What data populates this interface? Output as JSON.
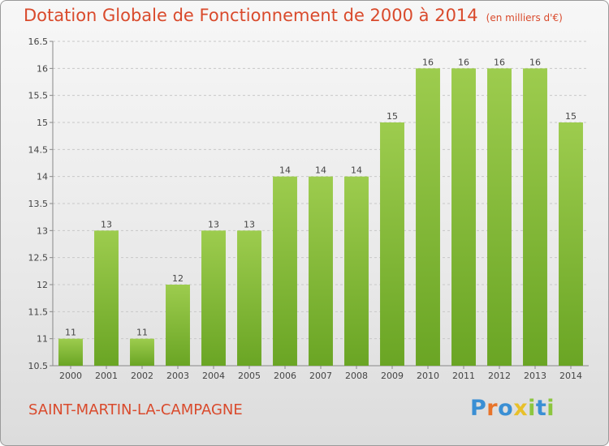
{
  "header": {
    "title": "Dotation Globale de Fonctionnement de 2000 à 2014",
    "unit": "(en milliers d'€)"
  },
  "footer": {
    "commune": "SAINT-MARTIN-LA-CAMPAGNE",
    "brand": "Proxiti"
  },
  "colors": {
    "title": "#d94a2c",
    "bar_light": "#9dcc4e",
    "bar_dark": "#6aa524",
    "grid": "#c8c8c8",
    "brand_letters": [
      "#3a8fd4",
      "#e8742a",
      "#3a8fd4",
      "#e8c02a",
      "#8cc63f",
      "#3a8fd4",
      "#8cc63f"
    ]
  },
  "chart_data": {
    "type": "bar",
    "title": "Dotation Globale de Fonctionnement de 2000 à 2014",
    "subtitle": "(en milliers d'€)",
    "xlabel": "",
    "ylabel": "",
    "categories": [
      "2000",
      "2001",
      "2002",
      "2003",
      "2004",
      "2005",
      "2006",
      "2007",
      "2008",
      "2009",
      "2010",
      "2011",
      "2012",
      "2013",
      "2014"
    ],
    "values": [
      11,
      13,
      11,
      12,
      13,
      13,
      14,
      14,
      14,
      15,
      16,
      16,
      16,
      16,
      15
    ],
    "data_labels": [
      "11",
      "13",
      "11",
      "12",
      "13",
      "13",
      "14",
      "14",
      "14",
      "15",
      "16",
      "16",
      "16",
      "16",
      "15"
    ],
    "ylim": [
      10.5,
      16.5
    ],
    "yticks": [
      "10.5",
      "11",
      "11.5",
      "12",
      "12.5",
      "13",
      "13.5",
      "14",
      "14.5",
      "15",
      "15.5",
      "16",
      "16.5"
    ],
    "grid": true,
    "legend": "none"
  }
}
